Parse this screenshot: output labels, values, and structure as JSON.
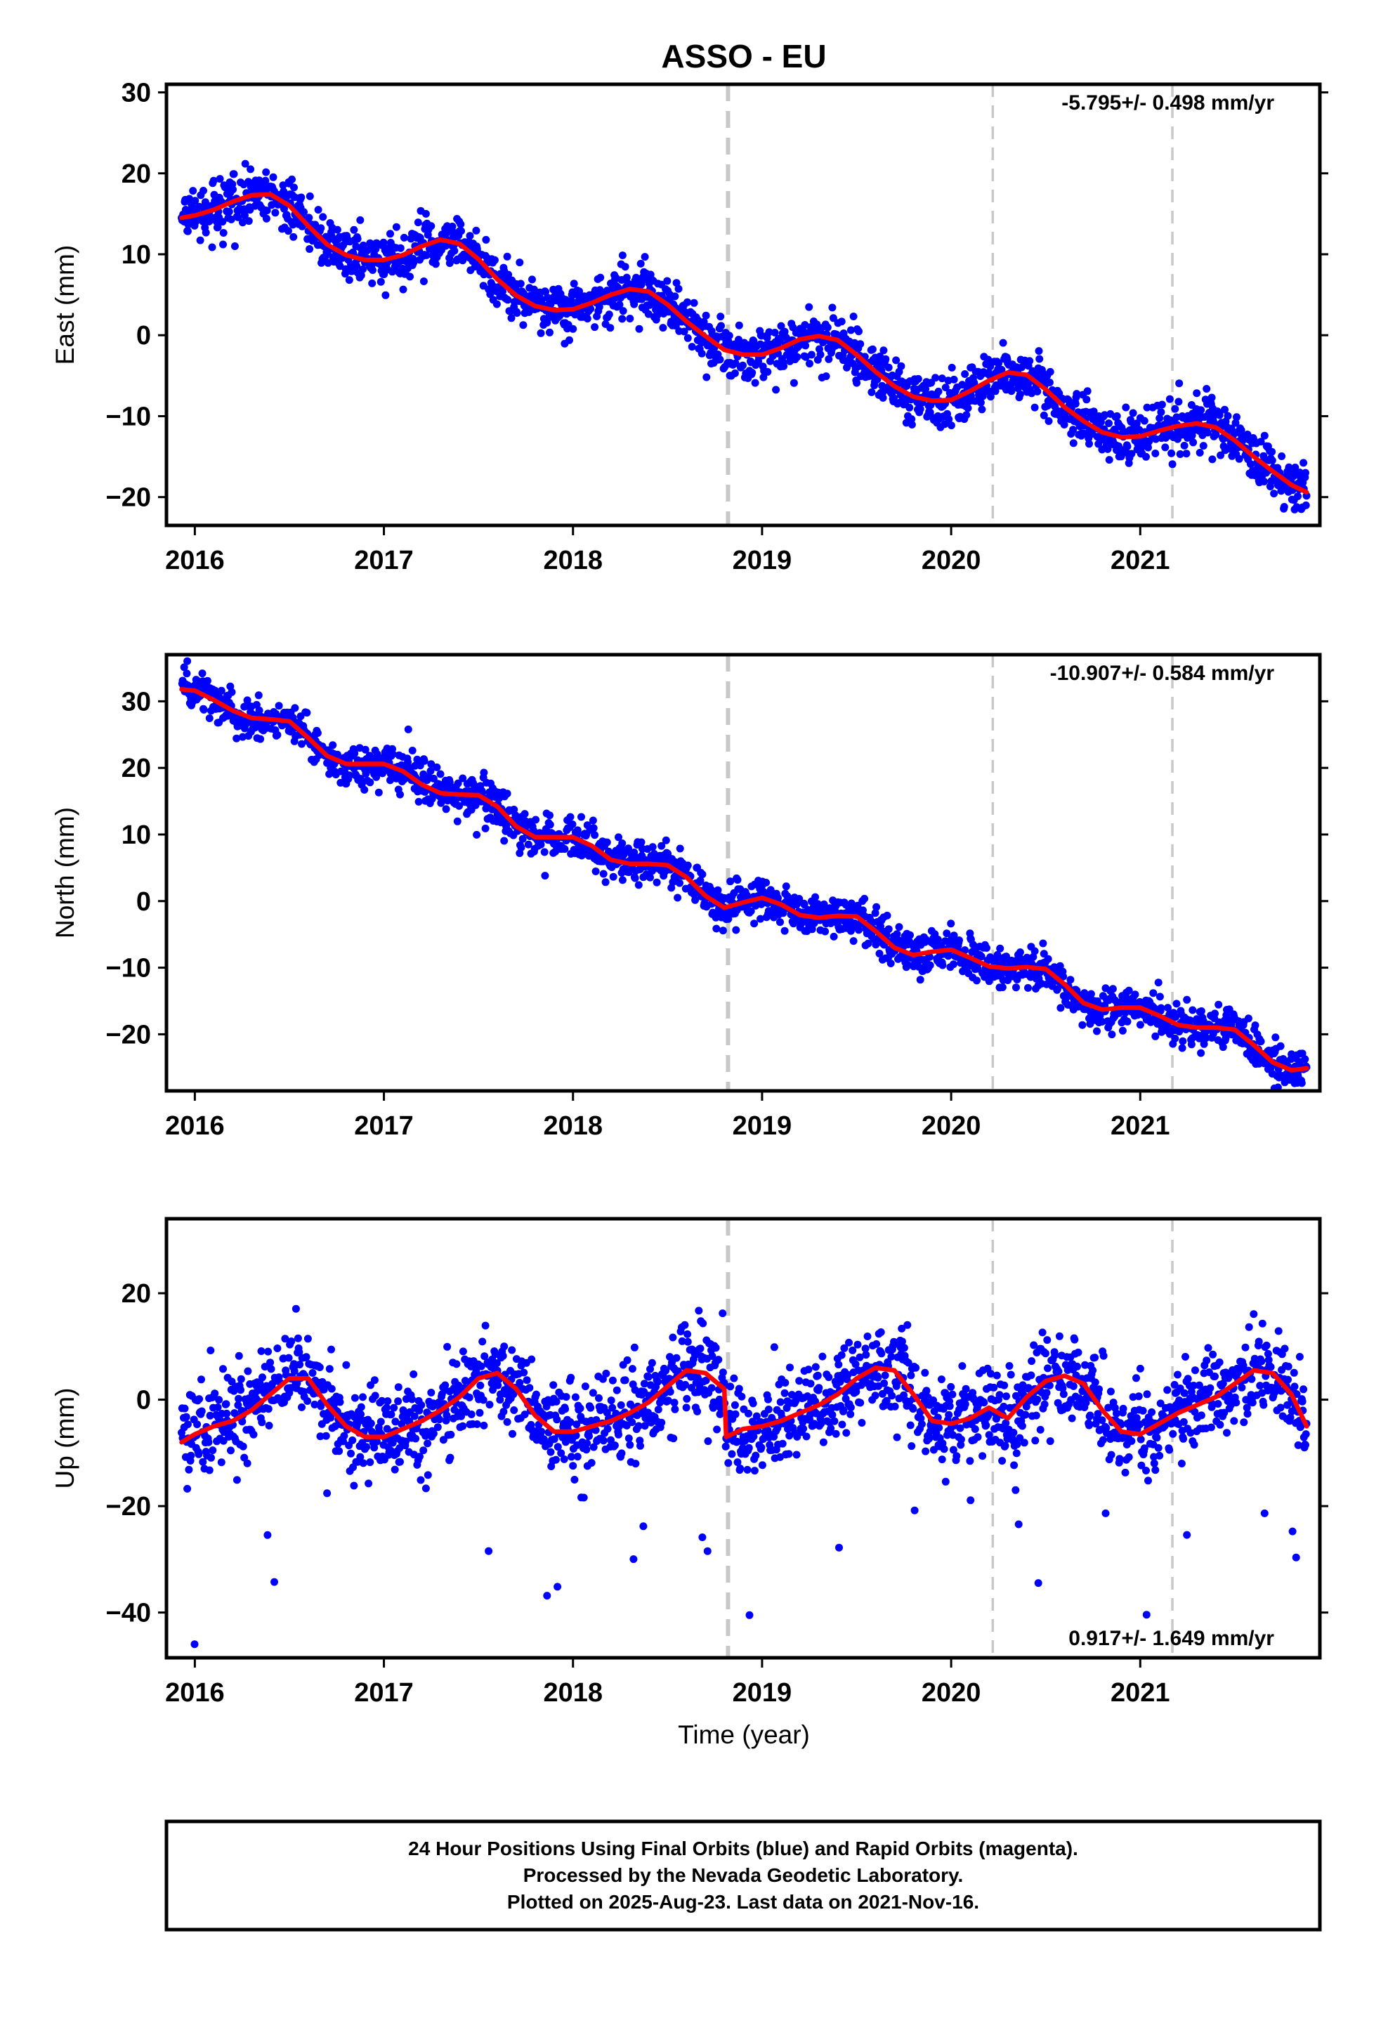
{
  "title": "ASSO - EU",
  "footer": {
    "line1": "24 Hour Positions Using Final Orbits (blue) and Rapid Orbits (magenta).",
    "line2": "Processed by the Nevada Geodetic Laboratory.",
    "line3": "Plotted on 2025-Aug-23. Last data on 2021-Nov-16."
  },
  "xlabel": "Time (year)",
  "colors": {
    "points": "#0000ff",
    "fit": "#ff0000",
    "events": "#c8c8c8",
    "frame": "#000000"
  },
  "chart_data": [
    {
      "type": "scatter",
      "component": "East",
      "ylabel": "East (mm)",
      "rate_label": "-5.795+/- 0.498 mm/yr",
      "xlim": [
        2015.85,
        2021.95
      ],
      "ylim": [
        -23.5,
        31
      ],
      "xticks": [
        2016,
        2017,
        2018,
        2019,
        2020,
        2021
      ],
      "yticks": [
        -20,
        -10,
        0,
        10,
        20,
        30
      ],
      "events": [
        {
          "x": 2018.82,
          "style": "heavy"
        },
        {
          "x": 2020.22,
          "style": "light"
        },
        {
          "x": 2021.17,
          "style": "light"
        }
      ],
      "data_range": [
        2015.93,
        2021.88
      ],
      "fit": {
        "x": [
          2015.93,
          2016.0,
          2016.1,
          2016.2,
          2016.3,
          2016.4,
          2016.5,
          2016.6,
          2016.7,
          2016.8,
          2016.9,
          2017.0,
          2017.1,
          2017.2,
          2017.3,
          2017.4,
          2017.5,
          2017.6,
          2017.7,
          2017.8,
          2017.9,
          2018.0,
          2018.1,
          2018.2,
          2018.3,
          2018.4,
          2018.5,
          2018.6,
          2018.7,
          2018.8,
          2018.9,
          2019.0,
          2019.1,
          2019.2,
          2019.3,
          2019.4,
          2019.5,
          2019.6,
          2019.7,
          2019.8,
          2019.9,
          2020.0,
          2020.1,
          2020.2,
          2020.3,
          2020.4,
          2020.5,
          2020.6,
          2020.7,
          2020.8,
          2020.9,
          2021.0,
          2021.1,
          2021.2,
          2021.3,
          2021.4,
          2021.5,
          2021.6,
          2021.7,
          2021.8,
          2021.88
        ],
        "y": [
          14.5,
          14.8,
          15.5,
          16.5,
          17.3,
          17.4,
          16.0,
          13.5,
          11.2,
          9.9,
          9.3,
          9.3,
          9.9,
          11.0,
          11.8,
          11.3,
          9.4,
          6.9,
          4.9,
          3.6,
          3.1,
          3.2,
          4.0,
          5.0,
          5.7,
          5.4,
          3.8,
          1.7,
          -0.1,
          -1.8,
          -2.4,
          -2.4,
          -1.6,
          -0.5,
          -0.1,
          -0.6,
          -2.4,
          -4.5,
          -6.3,
          -7.6,
          -8.1,
          -8.0,
          -6.9,
          -5.6,
          -4.6,
          -4.9,
          -6.7,
          -8.9,
          -10.6,
          -12.0,
          -12.6,
          -12.5,
          -11.8,
          -11.2,
          -10.9,
          -11.4,
          -13.0,
          -15.0,
          -16.8,
          -18.5,
          -19.4
        ]
      },
      "scatter_sigma": 1.6
    },
    {
      "type": "scatter",
      "component": "North",
      "ylabel": "North (mm)",
      "rate_label": "-10.907+/- 0.584 mm/yr",
      "xlim": [
        2015.85,
        2021.95
      ],
      "ylim": [
        -28.5,
        37
      ],
      "xticks": [
        2016,
        2017,
        2018,
        2019,
        2020,
        2021
      ],
      "yticks": [
        -20,
        -10,
        0,
        10,
        20,
        30
      ],
      "events": [
        {
          "x": 2018.82,
          "style": "heavy"
        },
        {
          "x": 2020.22,
          "style": "light"
        },
        {
          "x": 2021.17,
          "style": "light"
        }
      ],
      "data_range": [
        2015.93,
        2021.88
      ],
      "fit": {
        "x": [
          2015.93,
          2016.0,
          2016.1,
          2016.2,
          2016.3,
          2016.4,
          2016.5,
          2016.6,
          2016.7,
          2016.8,
          2016.9,
          2017.0,
          2017.1,
          2017.2,
          2017.3,
          2017.4,
          2017.5,
          2017.6,
          2017.7,
          2017.8,
          2017.9,
          2018.0,
          2018.1,
          2018.2,
          2018.3,
          2018.4,
          2018.5,
          2018.6,
          2018.7,
          2018.8,
          2018.9,
          2019.0,
          2019.1,
          2019.2,
          2019.3,
          2019.4,
          2019.5,
          2019.6,
          2019.7,
          2019.8,
          2019.9,
          2020.0,
          2020.1,
          2020.2,
          2020.3,
          2020.4,
          2020.5,
          2020.6,
          2020.7,
          2020.8,
          2020.9,
          2021.0,
          2021.1,
          2021.2,
          2021.3,
          2021.4,
          2021.5,
          2021.6,
          2021.7,
          2021.8,
          2021.88
        ],
        "y": [
          31.8,
          31.6,
          30.2,
          28.6,
          27.5,
          27.3,
          27.0,
          24.5,
          21.8,
          20.6,
          20.6,
          20.6,
          19.5,
          17.5,
          16.2,
          16.0,
          15.9,
          14.2,
          11.2,
          9.6,
          9.6,
          9.6,
          8.3,
          6.2,
          5.6,
          5.6,
          5.4,
          3.6,
          0.8,
          -1.0,
          -0.2,
          0.5,
          -0.5,
          -2.1,
          -2.5,
          -2.2,
          -2.3,
          -4.5,
          -7.0,
          -8.1,
          -7.6,
          -7.3,
          -8.5,
          -9.8,
          -10.1,
          -9.9,
          -10.2,
          -12.5,
          -15.3,
          -16.3,
          -16.0,
          -16.0,
          -17.2,
          -18.6,
          -19.0,
          -19.0,
          -19.3,
          -21.6,
          -24.2,
          -25.4,
          -25.1
        ]
      },
      "scatter_sigma": 1.5
    },
    {
      "type": "scatter",
      "component": "Up",
      "ylabel": "Up (mm)",
      "rate_label": "0.917+/- 1.649 mm/yr",
      "xlim": [
        2015.85,
        2021.95
      ],
      "ylim": [
        -48.5,
        34
      ],
      "xticks": [
        2016,
        2017,
        2018,
        2019,
        2020,
        2021
      ],
      "yticks": [
        -40,
        -20,
        0,
        20
      ],
      "events": [
        {
          "x": 2018.82,
          "style": "heavy"
        },
        {
          "x": 2020.22,
          "style": "light"
        },
        {
          "x": 2021.17,
          "style": "light"
        }
      ],
      "data_range": [
        2015.93,
        2021.88
      ],
      "fit": {
        "x": [
          2015.93,
          2016.0,
          2016.1,
          2016.2,
          2016.3,
          2016.4,
          2016.5,
          2016.6,
          2016.7,
          2016.8,
          2016.9,
          2017.0,
          2017.1,
          2017.2,
          2017.3,
          2017.4,
          2017.5,
          2017.6,
          2017.7,
          2017.8,
          2017.9,
          2018.0,
          2018.1,
          2018.2,
          2018.3,
          2018.4,
          2018.5,
          2018.6,
          2018.7,
          2018.8,
          2018.81,
          2018.9,
          2019.0,
          2019.1,
          2019.2,
          2019.3,
          2019.4,
          2019.5,
          2019.6,
          2019.7,
          2019.8,
          2019.9,
          2020.0,
          2020.1,
          2020.2,
          2020.3,
          2020.4,
          2020.5,
          2020.6,
          2020.7,
          2020.8,
          2020.9,
          2021.0,
          2021.1,
          2021.2,
          2021.3,
          2021.4,
          2021.5,
          2021.6,
          2021.7,
          2021.8,
          2021.88
        ],
        "y": [
          -8.0,
          -6.5,
          -5.0,
          -4.0,
          -2.0,
          1.0,
          4.0,
          4.0,
          -1.0,
          -5.0,
          -7.0,
          -7.0,
          -5.5,
          -4.0,
          -2.0,
          0.5,
          4.0,
          5.0,
          2.0,
          -3.0,
          -6.0,
          -6.0,
          -5.0,
          -4.0,
          -2.5,
          -0.5,
          2.5,
          5.5,
          5.0,
          2.0,
          -7.0,
          -5.5,
          -5.0,
          -4.0,
          -2.5,
          -1.0,
          1.0,
          4.0,
          6.0,
          5.5,
          1.0,
          -4.0,
          -4.5,
          -3.5,
          -1.5,
          -3.5,
          0.5,
          3.5,
          4.5,
          3.0,
          -2.0,
          -6.0,
          -6.5,
          -4.5,
          -2.5,
          -1.0,
          0.5,
          3.0,
          5.5,
          5.0,
          1.0,
          -5.0
        ]
      },
      "scatter_sigma": 4.2
    }
  ]
}
